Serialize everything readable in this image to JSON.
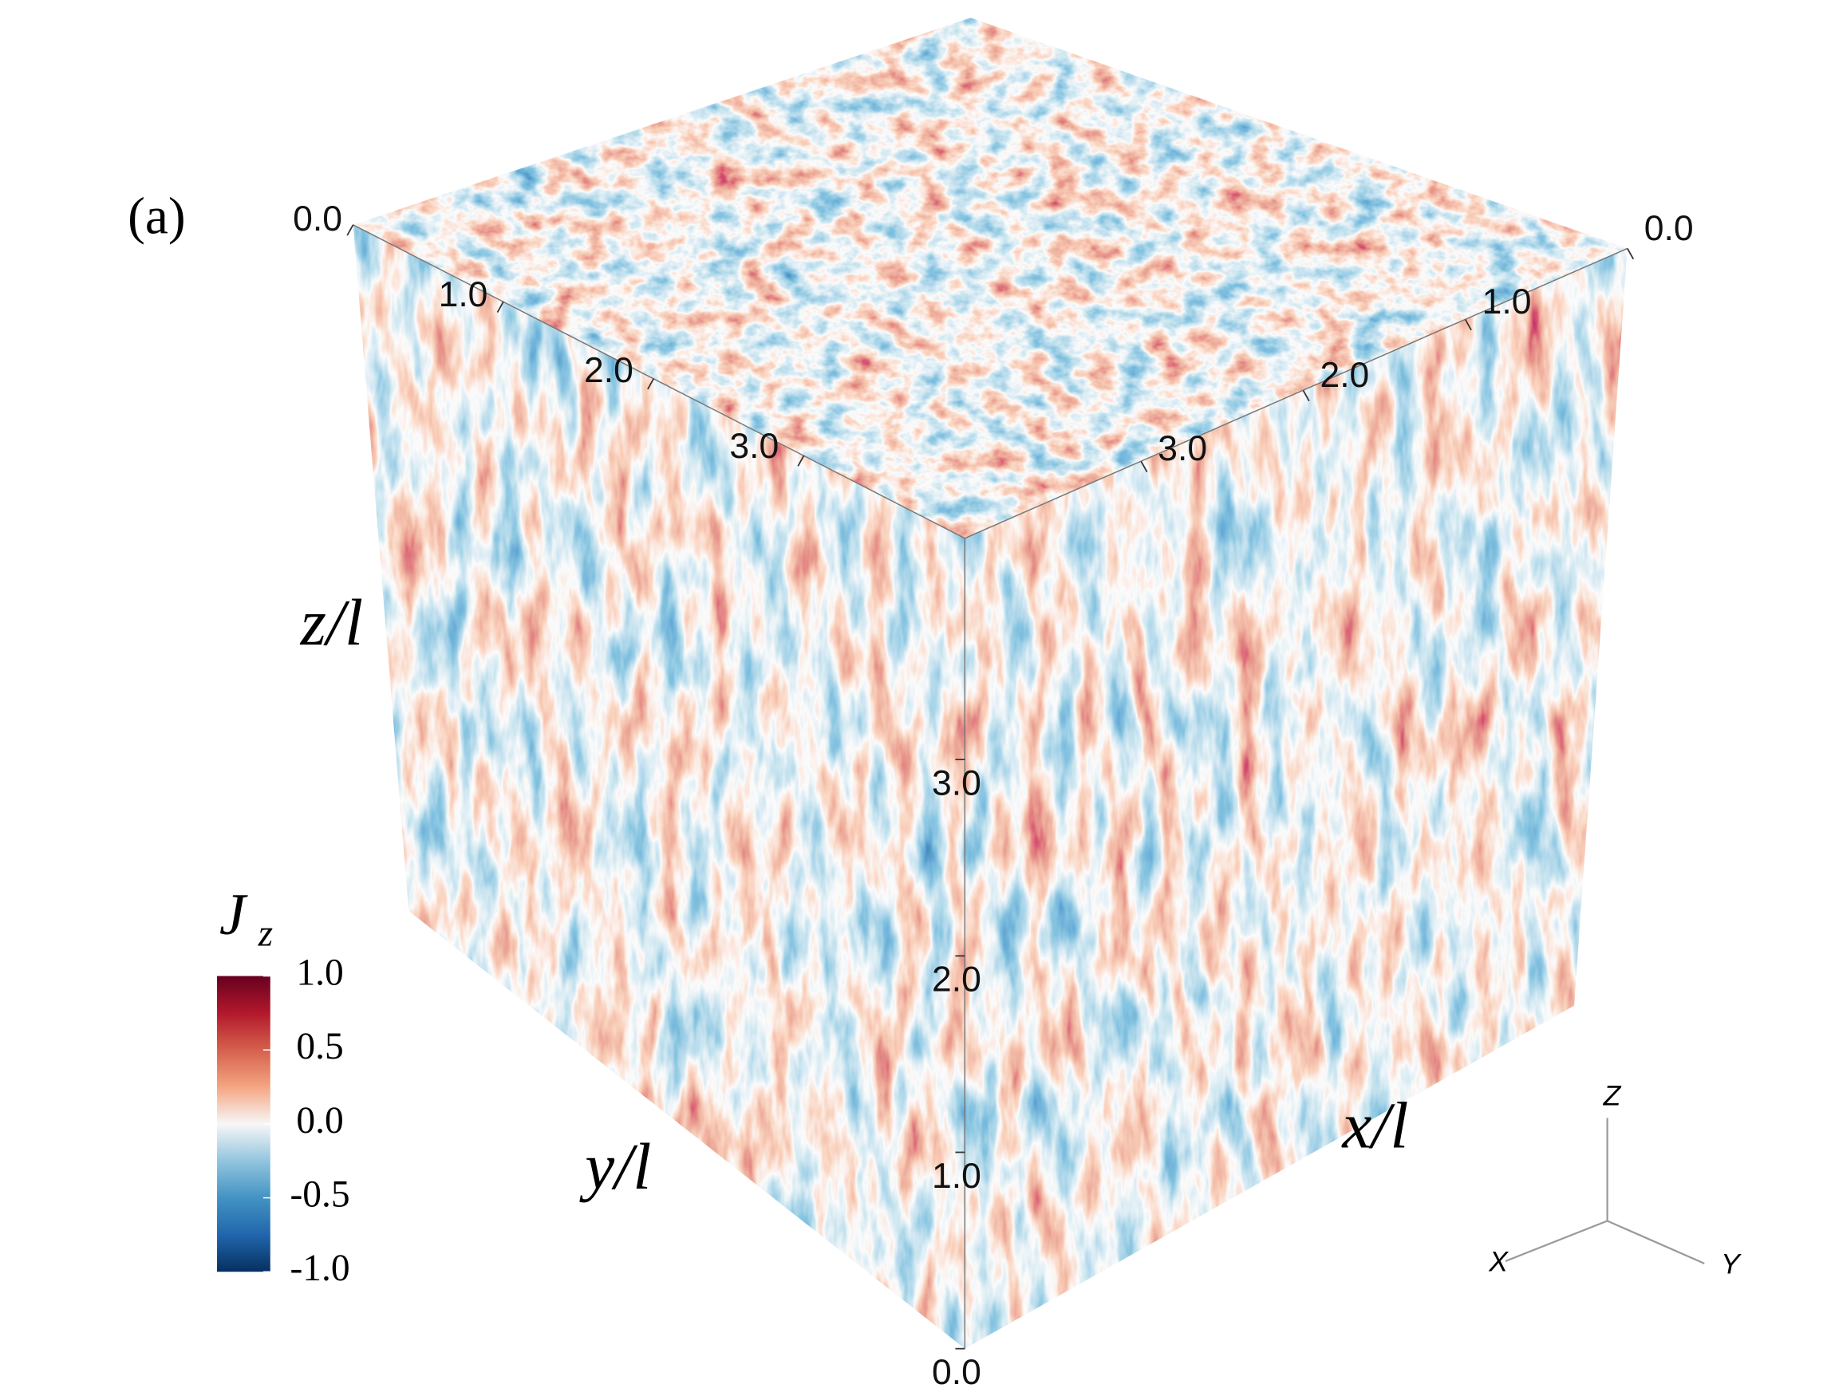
{
  "panel_label": "(a)",
  "axes": {
    "y": {
      "label": "y/l",
      "ticks": [
        {
          "value": 0,
          "label": "0.0"
        },
        {
          "value": 1,
          "label": "1.0"
        },
        {
          "value": 2,
          "label": "2.0"
        },
        {
          "value": 3,
          "label": "3.0"
        }
      ]
    },
    "x": {
      "label": "x/l",
      "ticks": [
        {
          "value": 0,
          "label": "0.0"
        },
        {
          "value": 1,
          "label": "1.0"
        },
        {
          "value": 2,
          "label": "2.0"
        },
        {
          "value": 3,
          "label": "3.0"
        }
      ]
    },
    "z": {
      "label": "z/l",
      "ticks": [
        {
          "value": 0,
          "label": "0.0"
        },
        {
          "value": 1,
          "label": "1.0"
        },
        {
          "value": 2,
          "label": "2.0"
        },
        {
          "value": 3,
          "label": "3.0"
        }
      ]
    }
  },
  "colorbar": {
    "title": "J",
    "title_subscript": "z",
    "lim": [
      -1,
      1
    ],
    "ticks": [
      {
        "value": 1,
        "label": "1.0"
      },
      {
        "value": 0.5,
        "label": "0.5"
      },
      {
        "value": 0,
        "label": "0.0"
      },
      {
        "value": -0.5,
        "label": "-0.5"
      },
      {
        "value": -1,
        "label": "-1.0"
      }
    ],
    "colormap": [
      "#053061",
      "#2166ac",
      "#4393c3",
      "#92c5de",
      "#f7f7f7",
      "#f4a582",
      "#d6604d",
      "#b2182b",
      "#67001f"
    ]
  },
  "orientation": {
    "z": "Z",
    "x": "X",
    "y": "Y"
  }
}
